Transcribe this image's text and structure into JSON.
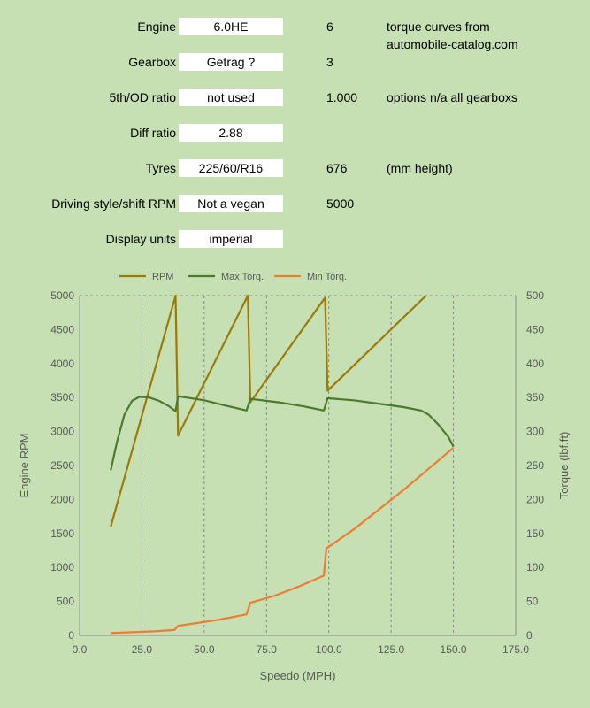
{
  "settings": {
    "rows": [
      {
        "label": "Engine",
        "value": "6.0HE",
        "num": "6",
        "note": "torque curves from",
        "note2": "automobile-catalog.com"
      },
      {
        "label": "Gearbox",
        "value": "Getrag ?",
        "num": "3",
        "note": "",
        "note2": ""
      },
      {
        "label": "5th/OD ratio",
        "value": "not used",
        "num": "1.000",
        "note": "options n/a all gearboxs",
        "note2": ""
      },
      {
        "label": "Diff ratio",
        "value": "2.88",
        "num": "",
        "note": "",
        "note2": ""
      },
      {
        "label": "Tyres",
        "value": "225/60/R16",
        "num": "676",
        "note": "(mm height)",
        "note2": ""
      },
      {
        "label": "Driving style/shift RPM",
        "value": "Not a vegan",
        "num": "5000",
        "note": "",
        "note2": ""
      },
      {
        "label": "Display units",
        "value": "imperial",
        "num": "",
        "note": "",
        "note2": ""
      }
    ]
  },
  "colors": {
    "background": "#c6e0b4",
    "grid": "#8a8a8a",
    "rpm": "#9c7a06",
    "max_torque": "#4a7a2c",
    "min_torque": "#ed7d31",
    "axis_text": "#595959"
  },
  "chart_data": {
    "type": "line",
    "xlabel": "Speedo (MPH)",
    "ylabel": "Engine RPM",
    "y2label": "Torque (lbf.ft)",
    "xlim": [
      0,
      175
    ],
    "ylim": [
      0,
      5000
    ],
    "y2lim": [
      0,
      500
    ],
    "x_ticks": [
      "0.0",
      "25.0",
      "50.0",
      "75.0",
      "100.0",
      "125.0",
      "150.0",
      "175.0"
    ],
    "y_ticks": [
      "0",
      "500",
      "1000",
      "1500",
      "2000",
      "2500",
      "3000",
      "3500",
      "4000",
      "4500",
      "5000"
    ],
    "y2_ticks": [
      "0",
      "50",
      "100",
      "150",
      "200",
      "250",
      "300",
      "350",
      "400",
      "450",
      "500"
    ],
    "grid": "vertical",
    "legend_position": "top",
    "series": [
      {
        "name": "RPM",
        "axis": "left",
        "points": [
          [
            12.5,
            1600
          ],
          [
            38.5,
            5000
          ],
          [
            39.5,
            2940
          ],
          [
            67.5,
            5000
          ],
          [
            68.5,
            3430
          ],
          [
            98.5,
            4970
          ],
          [
            99.5,
            3600
          ],
          [
            139,
            5000
          ]
        ]
      },
      {
        "name": "Max Torq.",
        "axis": "right",
        "points": [
          [
            12.5,
            243
          ],
          [
            15,
            285
          ],
          [
            18,
            325
          ],
          [
            21,
            345
          ],
          [
            24,
            351
          ],
          [
            28,
            350
          ],
          [
            32,
            345
          ],
          [
            36,
            337
          ],
          [
            38.5,
            330
          ],
          [
            39.5,
            352
          ],
          [
            50,
            346
          ],
          [
            60,
            337
          ],
          [
            67,
            331
          ],
          [
            68.5,
            348
          ],
          [
            80,
            343
          ],
          [
            90,
            337
          ],
          [
            98,
            331
          ],
          [
            99.5,
            349
          ],
          [
            110,
            346
          ],
          [
            120,
            341
          ],
          [
            130,
            336
          ],
          [
            137,
            331
          ],
          [
            140,
            325
          ],
          [
            144,
            310
          ],
          [
            148,
            292
          ],
          [
            150,
            278
          ]
        ]
      },
      {
        "name": "Min Torq.",
        "axis": "right",
        "points": [
          [
            12.5,
            3.5
          ],
          [
            20,
            4.5
          ],
          [
            30,
            6
          ],
          [
            38,
            8
          ],
          [
            39.5,
            14
          ],
          [
            45,
            17
          ],
          [
            55,
            22.5
          ],
          [
            67,
            31
          ],
          [
            68.5,
            48
          ],
          [
            78,
            58
          ],
          [
            88,
            72
          ],
          [
            98,
            88
          ],
          [
            99,
            128
          ],
          [
            110,
            156
          ],
          [
            120,
            185
          ],
          [
            130,
            214
          ],
          [
            140,
            245
          ],
          [
            150,
            276
          ]
        ]
      }
    ]
  }
}
